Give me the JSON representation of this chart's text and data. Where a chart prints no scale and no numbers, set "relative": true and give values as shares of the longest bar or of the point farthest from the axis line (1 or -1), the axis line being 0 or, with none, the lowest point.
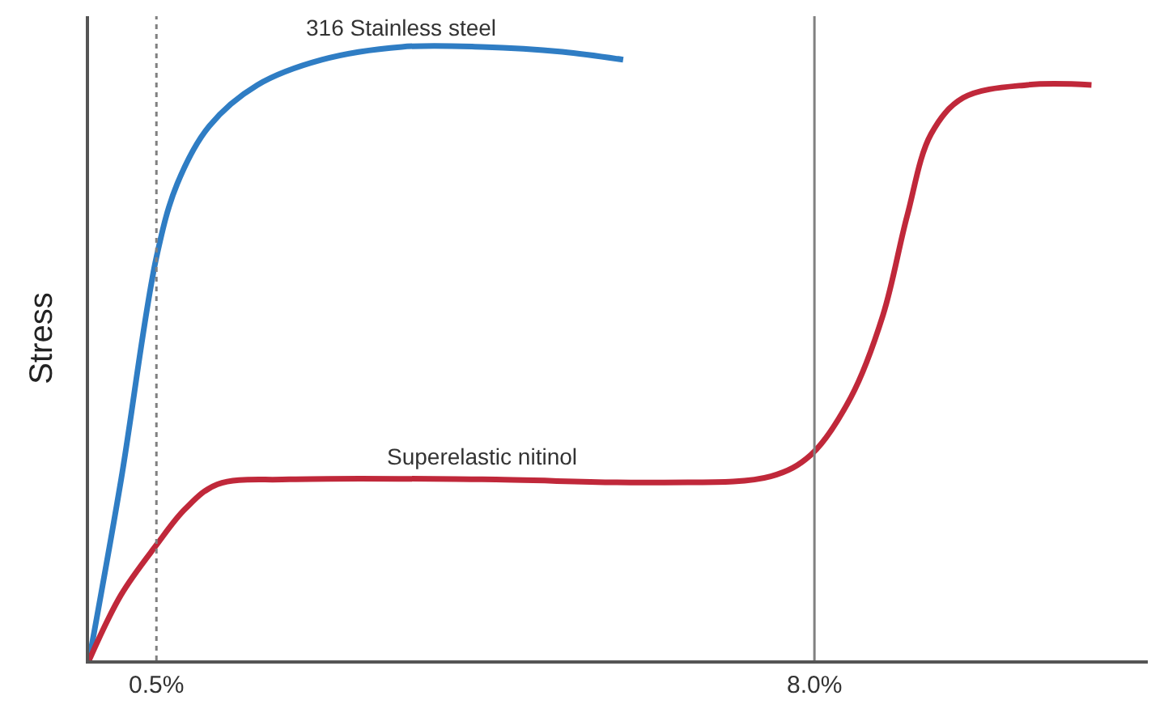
{
  "chart_data": {
    "type": "line",
    "relative": true,
    "ylabel": "Stress",
    "legend": false,
    "xlim": [
      -0.268,
      11.8
    ],
    "xticks": [
      {
        "value": 0.5,
        "label": "0.5%"
      },
      {
        "value": 8.0,
        "label": "8.0%"
      }
    ],
    "series": [
      {
        "name": "316 Stainless steel",
        "color": "#2f7dc4",
        "x": [
          -0.268,
          0.098,
          0.5,
          0.738,
          1.103,
          1.652,
          2.383,
          3.297,
          4.211,
          5.125,
          5.82
        ],
        "values": [
          0,
          0.295,
          0.657,
          0.777,
          0.871,
          0.938,
          0.979,
          1.0,
          1.0,
          0.992,
          0.979
        ]
      },
      {
        "name": "Superelastic nitinol",
        "color": "#c0283a",
        "x": [
          -0.268,
          0.098,
          0.5,
          0.829,
          1.195,
          2.017,
          4.211,
          6.222,
          7.502,
          7.959,
          8.416,
          8.782,
          9.056,
          9.33,
          9.696,
          10.427,
          11.158
        ],
        "values": [
          0,
          0.107,
          0.188,
          0.247,
          0.287,
          0.295,
          0.295,
          0.29,
          0.3,
          0.335,
          0.429,
          0.563,
          0.724,
          0.858,
          0.917,
          0.938,
          0.938
        ]
      }
    ],
    "ref_lines": [
      {
        "axis": "x",
        "value": 0.5,
        "color": "#808080",
        "line_style": "dotted"
      },
      {
        "axis": "x",
        "value": 8.0,
        "color": "#808080",
        "line_style": "solid"
      }
    ]
  }
}
